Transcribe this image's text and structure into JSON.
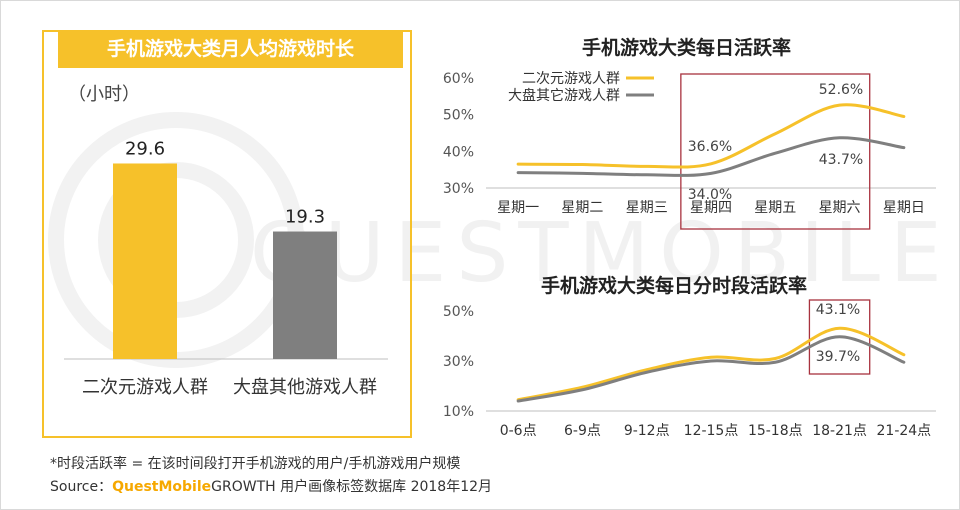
{
  "left_chart": {
    "title": "手机游戏大类月人均游戏时长",
    "unit": "（小时）"
  },
  "top_chart": {
    "title": "手机游戏大类每日活跃率"
  },
  "bottom_chart": {
    "title": "手机游戏大类每日分时段活跃率"
  },
  "watermark": "QUESTMOBILE",
  "footnote": "*时段活跃率 = 在该时间段打开手机游戏的用户/手机游戏用户规模",
  "source": {
    "prefix": "Source：",
    "brand": "QuestMobile",
    "rest": "GROWTH 用户画像标签数据库 2018年12月"
  },
  "colors": {
    "yellow": "#f6c12a",
    "gray": "#7f7f7f",
    "highlight_box": "#a8323e",
    "axis": "#bfbfbf"
  },
  "chart_data": [
    {
      "type": "bar",
      "categories": [
        "二次元游戏人群",
        "大盘其他游戏人群"
      ],
      "values": [
        29.6,
        19.3
      ],
      "value_labels": [
        "29.6",
        "19.3"
      ],
      "colors": [
        "#f6c12a",
        "#7f7f7f"
      ],
      "ylim": [
        0,
        38
      ]
    },
    {
      "type": "line",
      "categories": [
        "星期一",
        "星期二",
        "星期三",
        "星期四",
        "星期五",
        "星期六",
        "星期日"
      ],
      "series": [
        {
          "name": "二次元游戏人群",
          "color": "#f6c12a",
          "values": [
            36.5,
            36.4,
            35.9,
            36.6,
            44.8,
            52.6,
            49.5
          ]
        },
        {
          "name": "大盘其它游戏人群",
          "color": "#7f7f7f",
          "values": [
            34.2,
            34.0,
            33.6,
            34.0,
            39.5,
            43.7,
            41.0
          ]
        }
      ],
      "ylim": [
        30,
        60
      ],
      "yticks": [
        "30%",
        "40%",
        "50%",
        "60%"
      ],
      "yticks_values": [
        30,
        40,
        50,
        60
      ],
      "legend": "top-left",
      "annotations": [
        "36.6%",
        "34.0%",
        "52.6%",
        "43.7%"
      ],
      "highlight": [
        "星期四",
        "星期六"
      ]
    },
    {
      "type": "line",
      "categories": [
        "0-6点",
        "6-9点",
        "9-12点",
        "12-15点",
        "15-18点",
        "18-21点",
        "21-24点"
      ],
      "series": [
        {
          "color": "#f6c12a",
          "values": [
            14.5,
            19.5,
            26.5,
            31.5,
            31.0,
            43.1,
            32.5
          ]
        },
        {
          "color": "#7f7f7f",
          "values": [
            14.0,
            18.5,
            25.5,
            30.0,
            29.5,
            39.7,
            29.5
          ]
        }
      ],
      "ylim": [
        10,
        50
      ],
      "yticks": [
        "10%",
        "30%",
        "50%"
      ],
      "yticks_values": [
        10,
        30,
        50
      ],
      "annotations": [
        "43.1%",
        "39.7%"
      ],
      "highlight": [
        "18-21点"
      ]
    }
  ]
}
